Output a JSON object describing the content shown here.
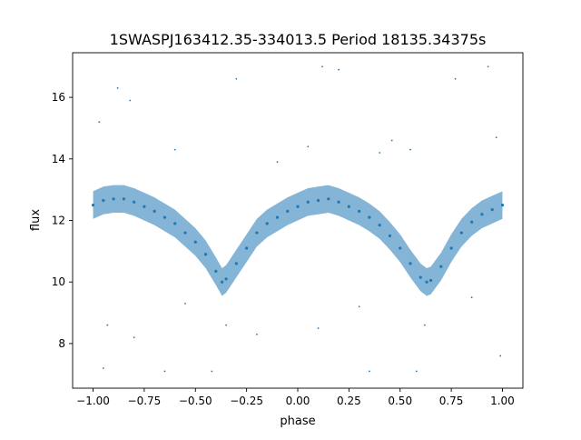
{
  "chart_data": {
    "type": "scatter",
    "title": "1SWASPJ163412.35-334013.5 Period 18135.34375s",
    "xlabel": "phase",
    "ylabel": "flux",
    "xlim": [
      -1.1,
      1.1
    ],
    "ylim": [
      6.55,
      17.45
    ],
    "xticks": [
      -1.0,
      -0.75,
      -0.5,
      -0.25,
      0.0,
      0.25,
      0.5,
      0.75,
      1.0
    ],
    "xtick_labels": [
      "−1.00",
      "−0.75",
      "−0.50",
      "−0.25",
      "0.00",
      "0.25",
      "0.50",
      "0.75",
      "1.00"
    ],
    "yticks": [
      8,
      10,
      12,
      14,
      16
    ],
    "ytick_labels": [
      "8",
      "10",
      "12",
      "14",
      "16"
    ],
    "grid": false,
    "marker_color": "#1f77b4",
    "scatter_spread": 0.45,
    "trend_points": [
      [
        -1.0,
        12.5
      ],
      [
        -0.95,
        12.65
      ],
      [
        -0.9,
        12.7
      ],
      [
        -0.85,
        12.7
      ],
      [
        -0.8,
        12.6
      ],
      [
        -0.75,
        12.45
      ],
      [
        -0.7,
        12.3
      ],
      [
        -0.65,
        12.1
      ],
      [
        -0.6,
        11.9
      ],
      [
        -0.55,
        11.6
      ],
      [
        -0.5,
        11.3
      ],
      [
        -0.45,
        10.9
      ],
      [
        -0.4,
        10.35
      ],
      [
        -0.37,
        10.0
      ],
      [
        -0.35,
        10.1
      ],
      [
        -0.3,
        10.6
      ],
      [
        -0.25,
        11.1
      ],
      [
        -0.2,
        11.6
      ],
      [
        -0.15,
        11.9
      ],
      [
        -0.1,
        12.1
      ],
      [
        -0.05,
        12.3
      ],
      [
        0.0,
        12.45
      ],
      [
        0.05,
        12.6
      ],
      [
        0.1,
        12.65
      ],
      [
        0.15,
        12.7
      ],
      [
        0.2,
        12.6
      ],
      [
        0.25,
        12.45
      ],
      [
        0.3,
        12.3
      ],
      [
        0.35,
        12.1
      ],
      [
        0.4,
        11.85
      ],
      [
        0.45,
        11.5
      ],
      [
        0.5,
        11.1
      ],
      [
        0.55,
        10.6
      ],
      [
        0.6,
        10.15
      ],
      [
        0.63,
        10.0
      ],
      [
        0.65,
        10.05
      ],
      [
        0.7,
        10.5
      ],
      [
        0.75,
        11.1
      ],
      [
        0.8,
        11.6
      ],
      [
        0.85,
        11.95
      ],
      [
        0.9,
        12.2
      ],
      [
        0.95,
        12.35
      ],
      [
        1.0,
        12.5
      ]
    ],
    "outliers": [
      [
        -0.88,
        16.3
      ],
      [
        -0.82,
        15.9
      ],
      [
        -0.97,
        15.2
      ],
      [
        -0.6,
        14.3
      ],
      [
        -0.3,
        16.6
      ],
      [
        0.05,
        14.4
      ],
      [
        0.12,
        17.0
      ],
      [
        0.2,
        16.9
      ],
      [
        0.46,
        14.6
      ],
      [
        0.77,
        16.6
      ],
      [
        0.93,
        17.0
      ],
      [
        0.97,
        14.7
      ],
      [
        -0.93,
        8.6
      ],
      [
        -0.8,
        8.2
      ],
      [
        -0.95,
        7.2
      ],
      [
        -0.65,
        7.1
      ],
      [
        -0.42,
        7.1
      ],
      [
        -0.35,
        8.6
      ],
      [
        0.1,
        8.5
      ],
      [
        0.35,
        7.1
      ],
      [
        0.58,
        7.1
      ],
      [
        0.62,
        8.6
      ],
      [
        0.99,
        7.6
      ],
      [
        -0.2,
        8.3
      ],
      [
        0.3,
        9.2
      ],
      [
        -0.55,
        9.3
      ],
      [
        0.85,
        9.5
      ],
      [
        0.4,
        14.2
      ],
      [
        -0.1,
        13.9
      ],
      [
        0.55,
        14.3
      ]
    ]
  }
}
